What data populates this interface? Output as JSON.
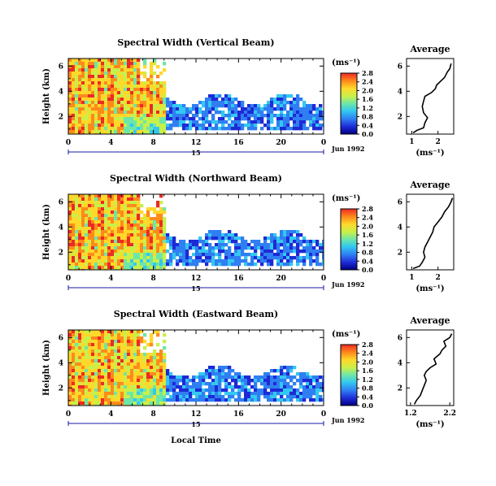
{
  "chart_data": [
    {
      "type": "heatmap",
      "title": "Spectral Width (Vertical Beam)",
      "ylabel": "Height (km)",
      "xlabel": "",
      "x_ticks": [
        "0",
        "4",
        "8",
        "12",
        "16",
        "20",
        "0"
      ],
      "y_ticks": [
        "2",
        "4",
        "6"
      ],
      "xlim": [
        0,
        24
      ],
      "ylim": [
        0.6,
        6.6
      ],
      "day_label": "15",
      "date_label": "Jun 1992",
      "colorbar": {
        "unit": "(ms⁻¹)",
        "ticks": [
          "0.0",
          "0.4",
          "0.8",
          "1.2",
          "1.6",
          "2.0",
          "2.4",
          "2.8"
        ],
        "range": [
          0,
          2.8
        ]
      },
      "grid": false,
      "average": {
        "title": "Average",
        "xlabel": "(ms⁻¹)",
        "x_ticks": [
          "1",
          "2"
        ],
        "xlim": [
          0.8,
          2.6
        ],
        "y_ticks": [
          "2",
          "4",
          "6"
        ],
        "profile": [
          [
            1.05,
            0.7
          ],
          [
            1.2,
            0.9
          ],
          [
            1.45,
            1.1
          ],
          [
            1.5,
            1.5
          ],
          [
            1.6,
            1.9
          ],
          [
            1.45,
            2.3
          ],
          [
            1.4,
            2.8
          ],
          [
            1.45,
            3.2
          ],
          [
            1.5,
            3.6
          ],
          [
            1.75,
            3.9
          ],
          [
            1.9,
            4.2
          ],
          [
            1.95,
            4.5
          ],
          [
            2.1,
            4.8
          ],
          [
            2.25,
            5.1
          ],
          [
            2.35,
            5.5
          ],
          [
            2.45,
            5.8
          ],
          [
            2.5,
            6.2
          ]
        ]
      }
    },
    {
      "type": "heatmap",
      "title": "Spectral Width (Northward Beam)",
      "ylabel": "Height (km)",
      "xlabel": "",
      "x_ticks": [
        "0",
        "4",
        "8",
        "12",
        "16",
        "20",
        "0"
      ],
      "y_ticks": [
        "2",
        "4",
        "6"
      ],
      "xlim": [
        0,
        24
      ],
      "ylim": [
        0.6,
        6.6
      ],
      "day_label": "15",
      "date_label": "Jun 1992",
      "colorbar": {
        "unit": "(ms⁻¹)",
        "ticks": [
          "0.0",
          "0.4",
          "0.8",
          "1.2",
          "1.6",
          "2.0",
          "2.4",
          "2.8"
        ],
        "range": [
          0,
          2.8
        ]
      },
      "grid": false,
      "average": {
        "title": "Average",
        "xlabel": "(ms⁻¹)",
        "x_ticks": [
          "1",
          "2"
        ],
        "xlim": [
          0.8,
          2.6
        ],
        "y_ticks": [
          "2",
          "4",
          "6"
        ],
        "profile": [
          [
            1.05,
            0.7
          ],
          [
            1.3,
            0.9
          ],
          [
            1.4,
            1.2
          ],
          [
            1.5,
            1.6
          ],
          [
            1.45,
            2.0
          ],
          [
            1.5,
            2.4
          ],
          [
            1.6,
            2.8
          ],
          [
            1.7,
            3.2
          ],
          [
            1.8,
            3.6
          ],
          [
            1.85,
            4.0
          ],
          [
            2.0,
            4.4
          ],
          [
            2.15,
            4.8
          ],
          [
            2.25,
            5.2
          ],
          [
            2.4,
            5.6
          ],
          [
            2.5,
            6.0
          ],
          [
            2.55,
            6.3
          ]
        ]
      }
    },
    {
      "type": "heatmap",
      "title": "Spectral Width (Eastward Beam)",
      "ylabel": "Height (km)",
      "xlabel": "Local Time",
      "x_ticks": [
        "0",
        "4",
        "8",
        "12",
        "16",
        "20",
        "0"
      ],
      "y_ticks": [
        "2",
        "4",
        "6"
      ],
      "xlim": [
        0,
        24
      ],
      "ylim": [
        0.6,
        6.6
      ],
      "day_label": "15",
      "date_label": "Jun 1992",
      "colorbar": {
        "unit": "(ms⁻¹)",
        "ticks": [
          "0.0",
          "0.4",
          "0.8",
          "1.2",
          "1.6",
          "2.0",
          "2.4",
          "2.8"
        ],
        "range": [
          0,
          2.8
        ]
      },
      "grid": false,
      "average": {
        "title": "Average",
        "xlabel": "(ms⁻¹)",
        "x_ticks": [
          "1.2",
          "2.2"
        ],
        "xlim": [
          1.1,
          2.3
        ],
        "y_ticks": [
          "2",
          "4",
          "6"
        ],
        "profile": [
          [
            1.3,
            0.7
          ],
          [
            1.35,
            1.0
          ],
          [
            1.45,
            1.4
          ],
          [
            1.5,
            1.8
          ],
          [
            1.55,
            2.2
          ],
          [
            1.6,
            2.6
          ],
          [
            1.55,
            3.0
          ],
          [
            1.6,
            3.3
          ],
          [
            1.7,
            3.6
          ],
          [
            1.85,
            3.9
          ],
          [
            1.8,
            4.3
          ],
          [
            1.95,
            4.7
          ],
          [
            2.0,
            5.0
          ],
          [
            2.1,
            5.3
          ],
          [
            2.05,
            5.7
          ],
          [
            2.2,
            6.0
          ],
          [
            2.25,
            6.3
          ]
        ]
      }
    }
  ]
}
